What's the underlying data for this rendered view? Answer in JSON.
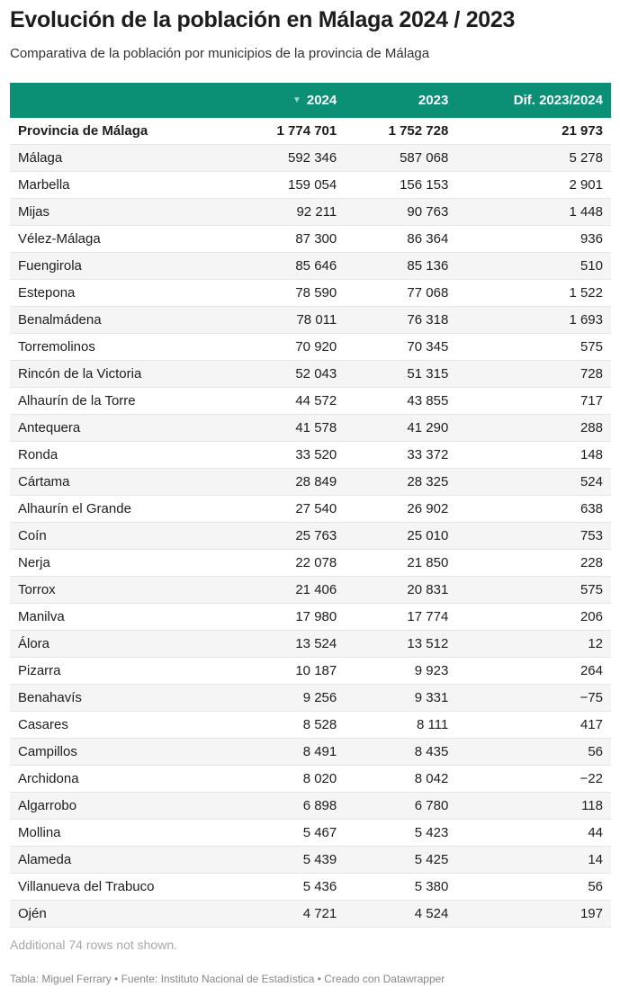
{
  "header": {
    "title": "Evolución de la población en Málaga 2024 / 2023",
    "subtitle": "Comparativa de la población por municipios de la provincia de Málaga"
  },
  "table": {
    "columns": [
      "2024",
      "2023",
      "Dif. 2023/2024"
    ],
    "rows": [
      [
        "Provincia de Málaga",
        "1 774 701",
        "1 752 728",
        "21 973"
      ],
      [
        "Málaga",
        "592 346",
        "587 068",
        "5 278"
      ],
      [
        "Marbella",
        "159 054",
        "156 153",
        "2 901"
      ],
      [
        "Mijas",
        "92 211",
        "90 763",
        "1 448"
      ],
      [
        "Vélez-Málaga",
        "87 300",
        "86 364",
        "936"
      ],
      [
        "Fuengirola",
        "85 646",
        "85 136",
        "510"
      ],
      [
        "Estepona",
        "78 590",
        "77 068",
        "1 522"
      ],
      [
        "Benalmádena",
        "78 011",
        "76 318",
        "1 693"
      ],
      [
        "Torremolinos",
        "70 920",
        "70 345",
        "575"
      ],
      [
        "Rincón de la Victoria",
        "52 043",
        "51 315",
        "728"
      ],
      [
        "Alhaurín de la Torre",
        "44 572",
        "43 855",
        "717"
      ],
      [
        "Antequera",
        "41 578",
        "41 290",
        "288"
      ],
      [
        "Ronda",
        "33 520",
        "33 372",
        "148"
      ],
      [
        "Cártama",
        "28 849",
        "28 325",
        "524"
      ],
      [
        "Alhaurín el Grande",
        "27 540",
        "26 902",
        "638"
      ],
      [
        "Coín",
        "25 763",
        "25 010",
        "753"
      ],
      [
        "Nerja",
        "22 078",
        "21 850",
        "228"
      ],
      [
        "Torrox",
        "21 406",
        "20 831",
        "575"
      ],
      [
        "Manilva",
        "17 980",
        "17 774",
        "206"
      ],
      [
        "Álora",
        "13 524",
        "13 512",
        "12"
      ],
      [
        "Pizarra",
        "10 187",
        "9 923",
        "264"
      ],
      [
        "Benahavís",
        "9 256",
        "9 331",
        "−75"
      ],
      [
        "Casares",
        "8 528",
        "8 111",
        "417"
      ],
      [
        "Campillos",
        "8 491",
        "8 435",
        "56"
      ],
      [
        "Archidona",
        "8 020",
        "8 042",
        "−22"
      ],
      [
        "Algarrobo",
        "6 898",
        "6 780",
        "118"
      ],
      [
        "Mollina",
        "5 467",
        "5 423",
        "44"
      ],
      [
        "Alameda",
        "5 439",
        "5 425",
        "14"
      ],
      [
        "Villanueva del Trabuco",
        "5 436",
        "5 380",
        "56"
      ],
      [
        "Ojén",
        "4 721",
        "4 524",
        "197"
      ]
    ],
    "note": "Additional 74 rows not shown."
  },
  "footer": "Tabla: Miguel Ferrary • Fuente: Instituto Nacional de Estadística • Creado con Datawrapper"
}
